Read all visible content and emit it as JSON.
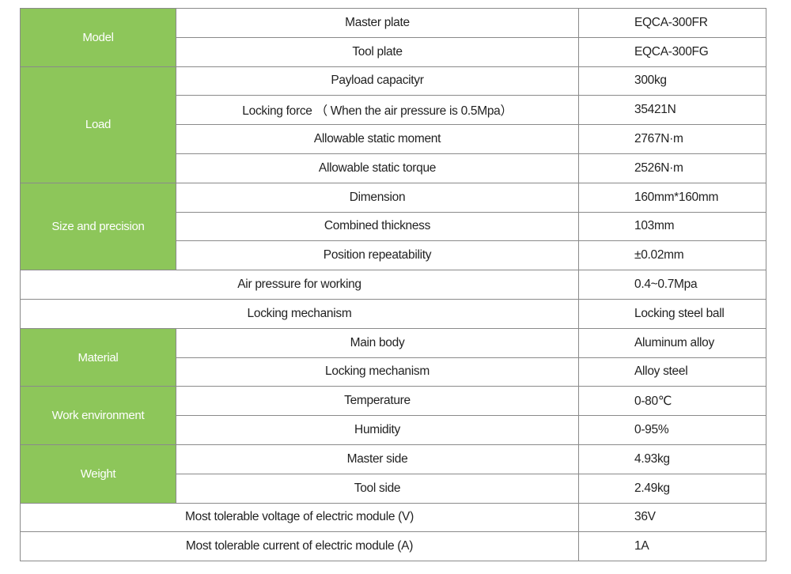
{
  "table": {
    "sections": [
      {
        "label": "Model",
        "rows": [
          [
            "Master plate",
            "EQCA-300FR"
          ],
          [
            "Tool plate",
            "EQCA-300FG"
          ]
        ]
      },
      {
        "label": "Load",
        "rows": [
          [
            "Payload capacityr",
            "300kg"
          ],
          [
            "Locking force （ When the air pressure is 0.5Mpa）",
            "35421N"
          ],
          [
            "Allowable static moment",
            "2767N·m"
          ],
          [
            "Allowable static torque",
            "2526N·m"
          ]
        ]
      },
      {
        "label": "Size and precision",
        "rows": [
          [
            "Dimension",
            "160mm*160mm"
          ],
          [
            "Combined thickness",
            "103mm"
          ],
          [
            "Position repeatability",
            "±0.02mm"
          ]
        ]
      },
      {
        "rows": [
          [
            "Air pressure for working",
            "0.4~0.7Mpa"
          ]
        ]
      },
      {
        "rows": [
          [
            "Locking mechanism",
            "Locking steel ball"
          ]
        ]
      },
      {
        "label": "Material",
        "rows": [
          [
            "Main body",
            "Aluminum alloy"
          ],
          [
            "Locking mechanism",
            "Alloy steel"
          ]
        ]
      },
      {
        "label": "Work environment",
        "rows": [
          [
            "Temperature",
            "0-80℃"
          ],
          [
            "Humidity",
            "0-95%"
          ]
        ]
      },
      {
        "label": "Weight",
        "rows": [
          [
            "Master side",
            "4.93kg"
          ],
          [
            "Tool side",
            "2.49kg"
          ]
        ]
      },
      {
        "rows": [
          [
            "Most tolerable voltage of electric module (V)",
            "36V"
          ]
        ]
      },
      {
        "rows": [
          [
            "Most tolerable current of electric module (A)",
            "1A"
          ]
        ]
      }
    ]
  }
}
